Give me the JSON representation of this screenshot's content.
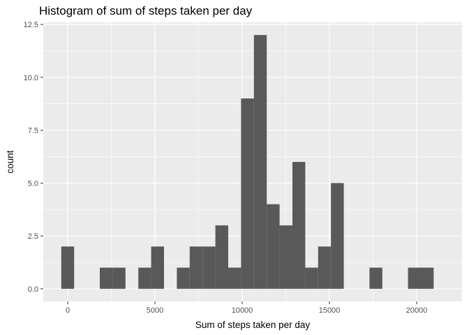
{
  "chart_data": {
    "type": "bar",
    "title": "Histogram of sum of steps taken per day",
    "xlabel": "Sum of steps taken per day",
    "ylabel": "count",
    "bin_width": 736,
    "bin_centers": [
      0,
      736,
      1472,
      2208,
      2944,
      3680,
      4416,
      5152,
      5888,
      6624,
      7360,
      8096,
      8832,
      9568,
      10304,
      11040,
      11776,
      12512,
      13248,
      13984,
      14720,
      15456,
      16192,
      16928,
      17664,
      18400,
      19136,
      19872,
      20608,
      21344
    ],
    "values": [
      2,
      0,
      0,
      1,
      1,
      0,
      1,
      2,
      0,
      1,
      2,
      2,
      3,
      1,
      9,
      12,
      4,
      3,
      6,
      1,
      2,
      5,
      0,
      0,
      1,
      0,
      0,
      1,
      1,
      0
    ],
    "xlim": [
      -1400,
      22600
    ],
    "ylim": [
      -0.6,
      12.6
    ],
    "x_ticks": [
      0,
      5000,
      10000,
      15000,
      20000
    ],
    "x_tick_labels": [
      "0",
      "5000",
      "10000",
      "15000",
      "20000"
    ],
    "y_ticks": [
      0,
      2.5,
      5,
      7.5,
      10,
      12.5
    ],
    "y_tick_labels": [
      "0.0",
      "2.5",
      "5.0",
      "7.5",
      "10.0",
      "12.5"
    ],
    "grid": true,
    "colors": {
      "panel": "#ebebeb",
      "grid": "#ffffff",
      "bar": "#595959",
      "tick": "#333333"
    }
  }
}
